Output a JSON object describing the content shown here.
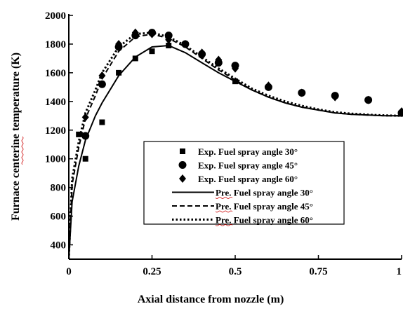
{
  "chart_data": {
    "type": "line",
    "title": "",
    "xlabel": "Axial distance from nozzle (m)",
    "ylabel": "Furnace centerine temperature (K)",
    "xlim": [
      0,
      1
    ],
    "ylim": [
      300,
      2000
    ],
    "x_ticks": [
      0,
      0.25,
      0.5,
      0.75,
      1
    ],
    "x_tick_labels": [
      "0",
      "0.25",
      "0.5",
      "0.75",
      "1"
    ],
    "y_ticks": [
      400,
      600,
      800,
      1000,
      1200,
      1400,
      1600,
      1800,
      2000
    ],
    "y_tick_labels": [
      "400",
      "600",
      "800",
      "1000",
      "1200",
      "1400",
      "1600",
      "1800",
      "2000"
    ],
    "legend_position": "bottom-center",
    "grid": false,
    "series": [
      {
        "name": "Exp. Fuel spray angle 30°",
        "kind": "markers",
        "marker": "square",
        "x": [
          0.03,
          0.05,
          0.1,
          0.15,
          0.2,
          0.25,
          0.3,
          0.5
        ],
        "y": [
          1170,
          1000,
          1255,
          1600,
          1700,
          1750,
          1790,
          1540
        ]
      },
      {
        "name": "Exp. Fuel spray angle 45°",
        "kind": "markers",
        "marker": "circle",
        "x": [
          0.05,
          0.1,
          0.15,
          0.2,
          0.25,
          0.3,
          0.35,
          0.4,
          0.45,
          0.5,
          0.6,
          0.7,
          0.8,
          0.9,
          1.0
        ],
        "y": [
          1160,
          1520,
          1780,
          1860,
          1880,
          1860,
          1800,
          1730,
          1670,
          1650,
          1500,
          1460,
          1440,
          1410,
          1320
        ]
      },
      {
        "name": "Exp. Fuel spray angle 60°",
        "kind": "markers",
        "marker": "diamond",
        "x": [
          0.05,
          0.1,
          0.15,
          0.2,
          0.25,
          0.3,
          0.35,
          0.4,
          0.45,
          0.5,
          0.6,
          0.7,
          0.8,
          0.9,
          1.0
        ],
        "y": [
          1290,
          1580,
          1800,
          1880,
          1870,
          1830,
          1800,
          1740,
          1690,
          1630,
          1510,
          1460,
          1430,
          1410,
          1330
        ]
      },
      {
        "name": "Pre. Fuel spray angle 30°",
        "kind": "line",
        "dash": "solid",
        "x": [
          0,
          0.01,
          0.03,
          0.05,
          0.08,
          0.1,
          0.15,
          0.2,
          0.25,
          0.3,
          0.35,
          0.4,
          0.45,
          0.5,
          0.55,
          0.6,
          0.65,
          0.7,
          0.75,
          0.8,
          0.85,
          0.9,
          0.95,
          1.0
        ],
        "y": [
          300,
          700,
          950,
          1130,
          1300,
          1390,
          1580,
          1710,
          1780,
          1790,
          1740,
          1670,
          1600,
          1540,
          1480,
          1430,
          1390,
          1360,
          1340,
          1320,
          1310,
          1305,
          1300,
          1300
        ]
      },
      {
        "name": "Pre. Fuel spray angle 45°",
        "kind": "line",
        "dash": "dashed",
        "x": [
          0,
          0.01,
          0.03,
          0.05,
          0.08,
          0.1,
          0.15,
          0.2,
          0.25,
          0.3,
          0.35,
          0.4,
          0.45,
          0.5,
          0.55,
          0.6,
          0.65,
          0.7,
          0.75,
          0.8,
          0.85,
          0.9,
          0.95,
          1.0
        ],
        "y": [
          300,
          820,
          1080,
          1280,
          1440,
          1560,
          1750,
          1850,
          1870,
          1840,
          1780,
          1700,
          1620,
          1550,
          1480,
          1430,
          1390,
          1360,
          1340,
          1320,
          1310,
          1305,
          1300,
          1300
        ]
      },
      {
        "name": "Pre. Fuel spray angle 60°",
        "kind": "line",
        "dash": "dotted",
        "x": [
          0,
          0.01,
          0.03,
          0.05,
          0.08,
          0.1,
          0.15,
          0.2,
          0.25,
          0.3,
          0.35,
          0.4,
          0.45,
          0.5,
          0.55,
          0.6,
          0.65,
          0.7,
          0.75,
          0.8,
          0.85,
          0.9,
          0.95,
          1.0
        ],
        "y": [
          300,
          860,
          1120,
          1320,
          1480,
          1600,
          1780,
          1870,
          1880,
          1850,
          1790,
          1710,
          1630,
          1560,
          1490,
          1440,
          1400,
          1370,
          1345,
          1325,
          1315,
          1308,
          1303,
          1300
        ]
      }
    ]
  },
  "colors": {
    "ink": "#000000",
    "legend_underline": "#cc0000"
  }
}
